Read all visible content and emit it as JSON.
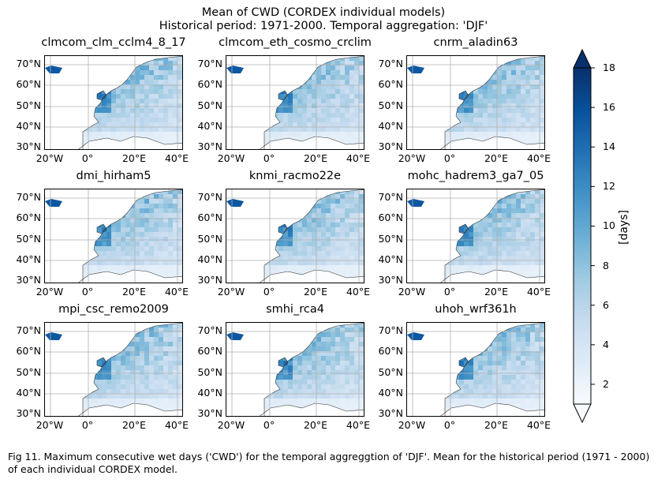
{
  "title_line1": "Mean of CWD (CORDEX individual models)",
  "title_line2": "Historical period: 1971-2000. Temporal aggregation: 'DJF'",
  "panels": [
    {
      "name": "clmcom_clm_cclm4_8_17"
    },
    {
      "name": "clmcom_eth_cosmo_crclim"
    },
    {
      "name": "cnrm_aladin63"
    },
    {
      "name": "dmi_hirham5"
    },
    {
      "name": "knmi_racmo22e"
    },
    {
      "name": "mohc_hadrem3_ga7_05"
    },
    {
      "name": "mpi_csc_remo2009"
    },
    {
      "name": "smhi_rca4"
    },
    {
      "name": "uhoh_wrf361h"
    }
  ],
  "axes": {
    "lat_ticks": [
      "70°N",
      "60°N",
      "50°N",
      "40°N",
      "30°N"
    ],
    "lon_ticks": [
      "20°W",
      "0°",
      "20°E",
      "40°E"
    ],
    "lat_range": [
      28,
      74
    ],
    "lon_range": [
      -28,
      46
    ]
  },
  "colorbar": {
    "label": "[days]",
    "ticks": [
      "18",
      "16",
      "14",
      "12",
      "10",
      "8",
      "6",
      "4",
      "2"
    ],
    "range": [
      1,
      18
    ],
    "colormap": "Blues",
    "extend": "both",
    "colors": [
      "#f7fbff",
      "#deebf7",
      "#c6dbef",
      "#9ecae1",
      "#6baed6",
      "#4292c6",
      "#2171b5",
      "#08519c",
      "#08306b"
    ]
  },
  "caption": "Fig 11. Maximum consecutive wet days ('CWD') for the temporal aggreggtion of 'DJF'. Mean for the historical period (1971 - 2000) of each individual CORDEX model.",
  "chart_data": {
    "type": "heatmap",
    "variable": "CWD",
    "unit": "days",
    "period": "1971-2000",
    "season": "DJF",
    "panels": [
      "clmcom_clm_cclm4_8_17",
      "clmcom_eth_cosmo_crclim",
      "cnrm_aladin63",
      "dmi_hirham5",
      "knmi_racmo22e",
      "mohc_hadrem3_ga7_05",
      "mpi_csc_remo2009",
      "smhi_rca4",
      "uhoh_wrf361h"
    ],
    "value_range": [
      1,
      18
    ],
    "grid": true
  }
}
